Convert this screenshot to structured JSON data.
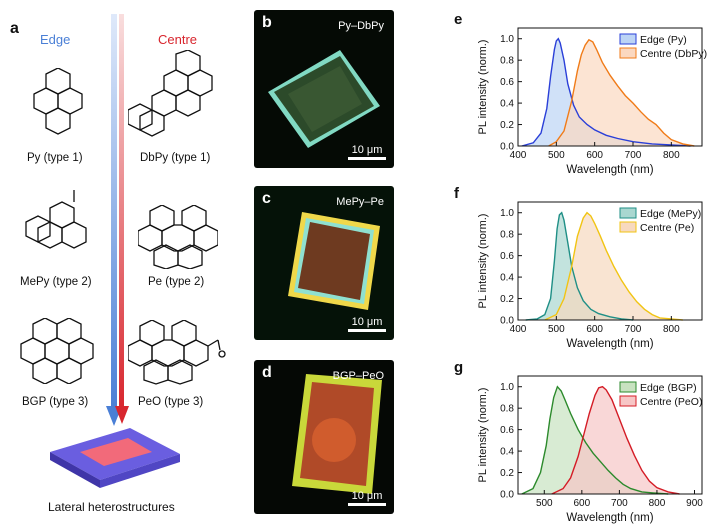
{
  "panel_a": {
    "letter": "a",
    "edge_title": "Edge",
    "centre_title": "Centre",
    "edge_title_color": "#4a7fd6",
    "centre_title_color": "#d8262e",
    "molecules": {
      "py": "Py (type 1)",
      "dbpy": "DbPy (type 1)",
      "mepy": "MePy (type 2)",
      "pe": "Pe (type 2)",
      "bgp": "BGP (type 3)",
      "peo": "PeO (type 3)"
    },
    "bottom_label": "Lateral heterostructures"
  },
  "micrographs": [
    {
      "letter": "b",
      "label": "Py–DbPy",
      "scale": "10 μm"
    },
    {
      "letter": "c",
      "label": "MePy–Pe",
      "scale": "10 μm"
    },
    {
      "letter": "d",
      "label": "BGP–PeO",
      "scale": "10 μm"
    }
  ],
  "chart_data": [
    {
      "panel": "e",
      "type": "area",
      "xlabel": "Wavelength (nm)",
      "ylabel": "PL intensity (norm.)",
      "xlim": [
        400,
        880
      ],
      "ylim": [
        0,
        1.1
      ],
      "xticks": [
        400,
        500,
        600,
        700,
        800
      ],
      "yticks": [
        0.0,
        0.2,
        0.4,
        0.6,
        0.8,
        1.0
      ],
      "series": [
        {
          "name": "Edge (Py)",
          "line_color": "#2a3fd8",
          "fill_color": "#bcd4f5",
          "x": [
            410,
            440,
            460,
            475,
            485,
            495,
            500,
            505,
            510,
            520,
            530,
            545,
            560,
            580,
            600,
            630,
            660,
            700,
            750,
            800,
            850
          ],
          "y": [
            0.0,
            0.03,
            0.12,
            0.35,
            0.65,
            0.9,
            0.98,
            1.0,
            0.96,
            0.8,
            0.58,
            0.38,
            0.27,
            0.2,
            0.15,
            0.1,
            0.07,
            0.04,
            0.02,
            0.01,
            0.0
          ]
        },
        {
          "name": "Centre (DbPy)",
          "line_color": "#f07b18",
          "fill_color": "#fbd8c0",
          "x": [
            480,
            500,
            520,
            540,
            555,
            565,
            575,
            585,
            595,
            605,
            620,
            640,
            660,
            680,
            700,
            720,
            740,
            760,
            780,
            800,
            830,
            860
          ],
          "y": [
            0.0,
            0.04,
            0.14,
            0.42,
            0.7,
            0.85,
            0.94,
            0.99,
            0.97,
            0.9,
            0.78,
            0.66,
            0.56,
            0.47,
            0.4,
            0.32,
            0.25,
            0.2,
            0.12,
            0.06,
            0.02,
            0.0
          ]
        }
      ]
    },
    {
      "panel": "f",
      "type": "area",
      "xlabel": "Wavelength (nm)",
      "ylabel": "PL intensity (norm.)",
      "xlim": [
        400,
        880
      ],
      "ylim": [
        0,
        1.1
      ],
      "xticks": [
        400,
        500,
        600,
        700,
        800
      ],
      "yticks": [
        0.0,
        0.2,
        0.4,
        0.6,
        0.8,
        1.0
      ],
      "series": [
        {
          "name": "Edge (MePy)",
          "line_color": "#1f8f86",
          "fill_color": "#a9d7d0",
          "x": [
            420,
            450,
            470,
            485,
            495,
            502,
            508,
            514,
            520,
            530,
            540,
            555,
            570,
            590,
            610,
            640,
            670,
            700
          ],
          "y": [
            0.0,
            0.01,
            0.05,
            0.2,
            0.55,
            0.85,
            0.98,
            1.0,
            0.93,
            0.72,
            0.5,
            0.3,
            0.18,
            0.1,
            0.06,
            0.03,
            0.01,
            0.0
          ]
        },
        {
          "name": "Centre (Pe)",
          "line_color": "#f1c413",
          "fill_color": "#f7d9bf",
          "x": [
            470,
            500,
            520,
            540,
            555,
            570,
            580,
            590,
            600,
            615,
            630,
            650,
            670,
            690,
            710,
            730,
            750,
            770,
            800,
            830
          ],
          "y": [
            0.0,
            0.05,
            0.2,
            0.5,
            0.78,
            0.95,
            1.0,
            0.97,
            0.9,
            0.78,
            0.65,
            0.5,
            0.37,
            0.26,
            0.17,
            0.1,
            0.05,
            0.02,
            0.01,
            0.0
          ]
        }
      ]
    },
    {
      "panel": "g",
      "type": "area",
      "xlabel": "Wavelength (nm)",
      "ylabel": "PL intensity (norm.)",
      "xlim": [
        430,
        920
      ],
      "ylim": [
        0,
        1.1
      ],
      "xticks": [
        500,
        600,
        700,
        800,
        900
      ],
      "yticks": [
        0.0,
        0.2,
        0.4,
        0.6,
        0.8,
        1.0
      ],
      "series": [
        {
          "name": "Edge (BGP)",
          "line_color": "#2c8a2c",
          "fill_color": "#c8e2c0",
          "x": [
            440,
            470,
            490,
            505,
            515,
            525,
            535,
            545,
            555,
            570,
            590,
            610,
            630,
            650,
            670,
            690,
            710,
            730,
            760,
            790,
            830
          ],
          "y": [
            0.0,
            0.05,
            0.2,
            0.45,
            0.7,
            0.9,
            1.0,
            0.96,
            0.88,
            0.75,
            0.6,
            0.48,
            0.38,
            0.3,
            0.22,
            0.15,
            0.09,
            0.05,
            0.02,
            0.01,
            0.0
          ]
        },
        {
          "name": "Centre (PeO)",
          "line_color": "#d41c26",
          "fill_color": "#f7c6c6",
          "x": [
            520,
            550,
            570,
            590,
            605,
            620,
            635,
            645,
            655,
            665,
            680,
            700,
            720,
            740,
            760,
            780,
            800,
            830,
            860
          ],
          "y": [
            0.0,
            0.05,
            0.15,
            0.35,
            0.55,
            0.75,
            0.92,
            0.99,
            1.0,
            0.97,
            0.88,
            0.7,
            0.52,
            0.36,
            0.22,
            0.12,
            0.06,
            0.02,
            0.0
          ]
        }
      ]
    }
  ]
}
